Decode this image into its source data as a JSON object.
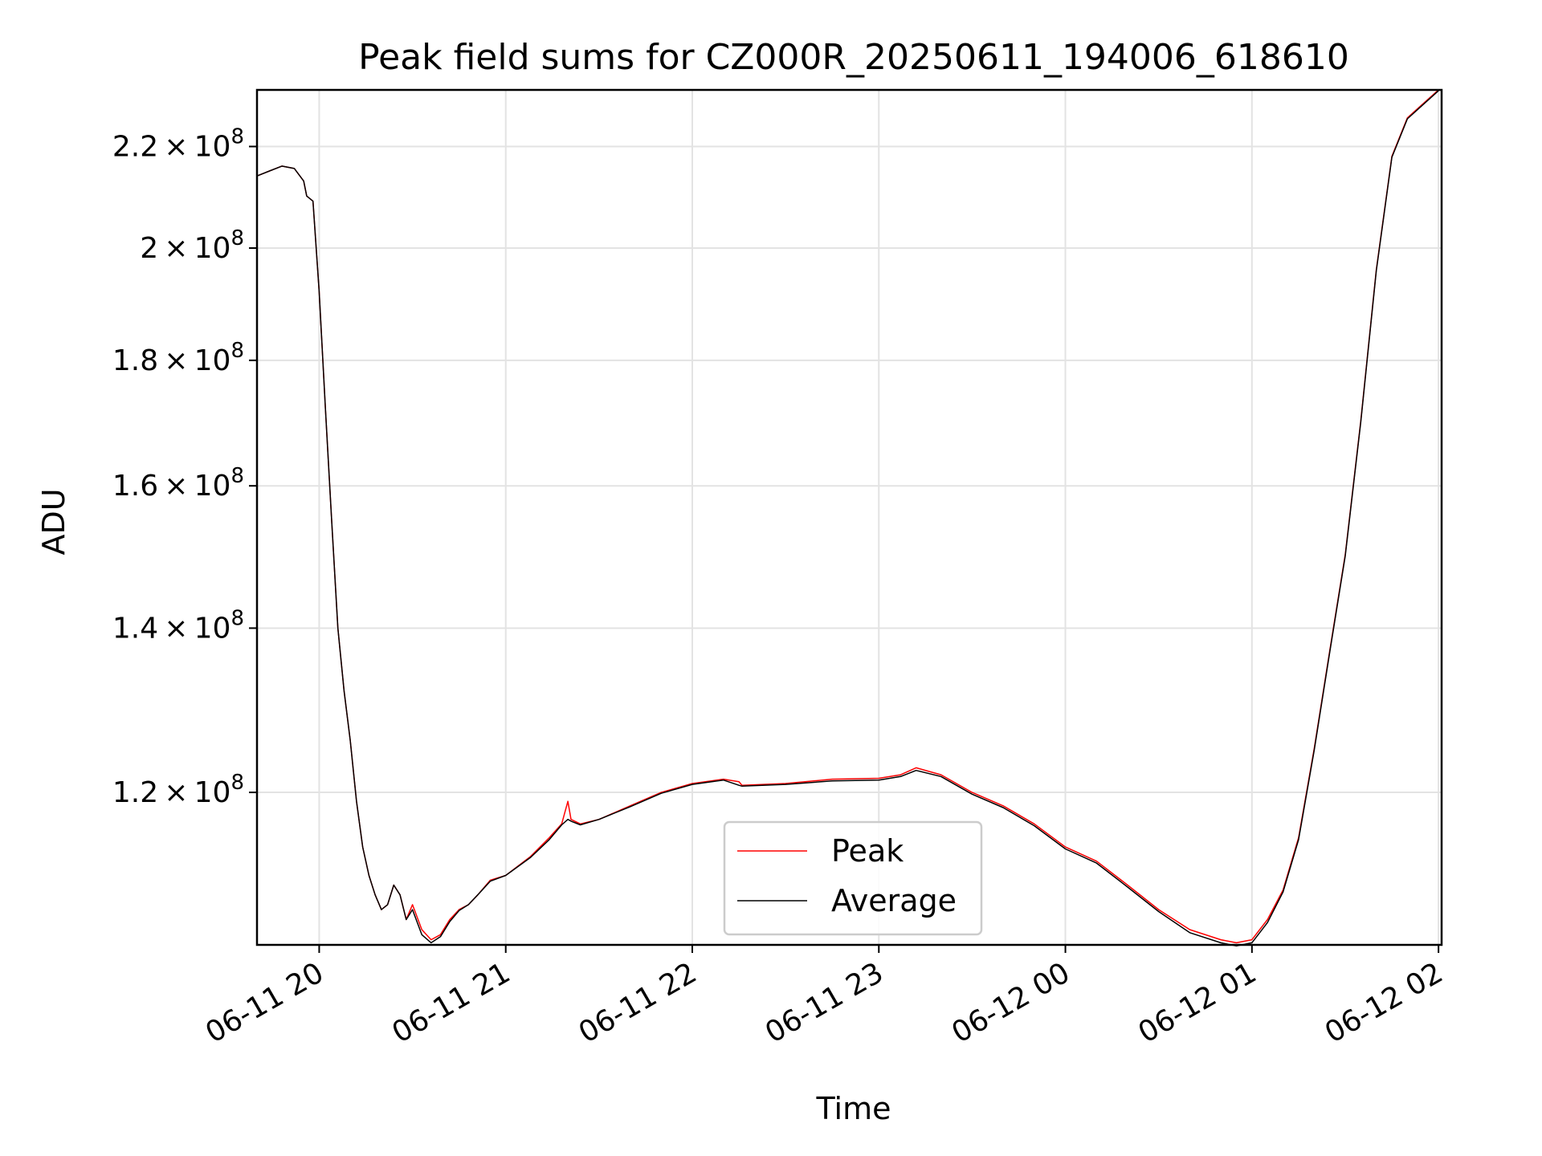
{
  "chart_data": {
    "type": "line",
    "title": "Peak field sums for CZ000R_20250611_194006_618610",
    "xlabel": "Time",
    "ylabel": "ADU",
    "xlim": [
      "2025-06-11 19:40",
      "2025-06-12 02:01"
    ],
    "ylim": [
      104000000,
      232000000
    ],
    "yscale": "log",
    "grid": true,
    "legend_position": "lower center",
    "x_ticks": [
      {
        "value": "2025-06-11 20:00",
        "label": "06-11 20"
      },
      {
        "value": "2025-06-11 21:00",
        "label": "06-11 21"
      },
      {
        "value": "2025-06-11 22:00",
        "label": "06-11 22"
      },
      {
        "value": "2025-06-11 23:00",
        "label": "06-11 23"
      },
      {
        "value": "2025-06-12 00:00",
        "label": "06-12 00"
      },
      {
        "value": "2025-06-12 01:00",
        "label": "06-12 01"
      },
      {
        "value": "2025-06-12 02:00",
        "label": "06-12 02"
      }
    ],
    "y_ticks": [
      {
        "value": 120000000,
        "mantissa": "1.2",
        "exponent": "8"
      },
      {
        "value": 140000000,
        "mantissa": "1.4",
        "exponent": "8"
      },
      {
        "value": 160000000,
        "mantissa": "1.6",
        "exponent": "8"
      },
      {
        "value": 180000000,
        "mantissa": "1.8",
        "exponent": "8"
      },
      {
        "value": 200000000,
        "mantissa": "2",
        "exponent": "8"
      },
      {
        "value": 220000000,
        "mantissa": "2.2",
        "exponent": "8"
      }
    ],
    "x": [
      "2025-06-11 19:40",
      "2025-06-11 19:44",
      "2025-06-11 19:48",
      "2025-06-11 19:52",
      "2025-06-11 19:55",
      "2025-06-11 19:56",
      "2025-06-11 19:58",
      "2025-06-11 20:00",
      "2025-06-11 20:02",
      "2025-06-11 20:04",
      "2025-06-11 20:06",
      "2025-06-11 20:08",
      "2025-06-11 20:10",
      "2025-06-11 20:12",
      "2025-06-11 20:14",
      "2025-06-11 20:16",
      "2025-06-11 20:18",
      "2025-06-11 20:20",
      "2025-06-11 20:22",
      "2025-06-11 20:24",
      "2025-06-11 20:26",
      "2025-06-11 20:28",
      "2025-06-11 20:30",
      "2025-06-11 20:33",
      "2025-06-11 20:36",
      "2025-06-11 20:39",
      "2025-06-11 20:42",
      "2025-06-11 20:45",
      "2025-06-11 20:48",
      "2025-06-11 20:51",
      "2025-06-11 20:55",
      "2025-06-11 21:00",
      "2025-06-11 21:08",
      "2025-06-11 21:14",
      "2025-06-11 21:18",
      "2025-06-11 21:20",
      "2025-06-11 21:21",
      "2025-06-11 21:24",
      "2025-06-11 21:30",
      "2025-06-11 21:40",
      "2025-06-11 21:50",
      "2025-06-11 22:00",
      "2025-06-11 22:10",
      "2025-06-11 22:15",
      "2025-06-11 22:16",
      "2025-06-11 22:30",
      "2025-06-11 22:45",
      "2025-06-11 23:00",
      "2025-06-11 23:07",
      "2025-06-11 23:12",
      "2025-06-11 23:20",
      "2025-06-11 23:30",
      "2025-06-11 23:40",
      "2025-06-11 23:50",
      "2025-06-12 00:00",
      "2025-06-12 00:10",
      "2025-06-12 00:20",
      "2025-06-12 00:30",
      "2025-06-12 00:40",
      "2025-06-12 00:50",
      "2025-06-12 00:55",
      "2025-06-12 01:00",
      "2025-06-12 01:05",
      "2025-06-12 01:10",
      "2025-06-12 01:15",
      "2025-06-12 01:20",
      "2025-06-12 01:25",
      "2025-06-12 01:30",
      "2025-06-12 01:35",
      "2025-06-12 01:40",
      "2025-06-12 01:45",
      "2025-06-12 01:50",
      "2025-06-12 01:55",
      "2025-06-12 02:00"
    ],
    "series": [
      {
        "name": "Peak",
        "color": "#ff0000",
        "values": [
          214000000,
          215000000,
          216000000,
          215500000,
          213000000,
          210000000,
          209000000,
          192000000,
          172000000,
          155000000,
          140000000,
          132000000,
          126000000,
          119000000,
          114000000,
          111000000,
          109000000,
          107500000,
          108000000,
          110000000,
          109000000,
          106500000,
          108000000,
          105500000,
          104500000,
          105000000,
          106500000,
          107500000,
          108000000,
          109000000,
          110500000,
          111000000,
          113000000,
          115000000,
          116500000,
          119000000,
          117000000,
          116500000,
          117000000,
          118500000,
          120000000,
          121000000,
          121500000,
          121200000,
          120800000,
          121000000,
          121500000,
          121600000,
          122000000,
          122800000,
          122000000,
          120000000,
          118500000,
          116500000,
          114000000,
          112500000,
          110000000,
          107500000,
          105500000,
          104500000,
          104200000,
          104500000,
          106500000,
          109500000,
          115000000,
          125000000,
          137000000,
          150000000,
          170000000,
          196000000,
          218000000,
          226000000,
          229000000,
          232000000
        ]
      },
      {
        "name": "Average",
        "color": "#000000",
        "values": [
          214000000,
          215000000,
          216000000,
          215500000,
          213000000,
          210000000,
          209000000,
          192000000,
          172000000,
          155000000,
          140000000,
          132000000,
          126000000,
          119000000,
          114000000,
          111000000,
          109000000,
          107500000,
          108000000,
          110000000,
          109000000,
          106500000,
          107500000,
          105000000,
          104200000,
          104800000,
          106300000,
          107400000,
          108000000,
          109000000,
          110400000,
          111000000,
          112900000,
          114800000,
          116400000,
          117000000,
          116800000,
          116400000,
          117000000,
          118400000,
          119900000,
          120900000,
          121400000,
          120800000,
          120700000,
          120900000,
          121300000,
          121400000,
          121800000,
          122500000,
          121800000,
          119800000,
          118300000,
          116300000,
          113800000,
          112300000,
          109800000,
          107300000,
          105200000,
          104200000,
          103900000,
          104200000,
          106200000,
          109300000,
          114800000,
          124800000,
          136800000,
          149800000,
          169800000,
          195800000,
          217800000,
          225800000,
          228800000,
          231800000
        ]
      }
    ]
  }
}
